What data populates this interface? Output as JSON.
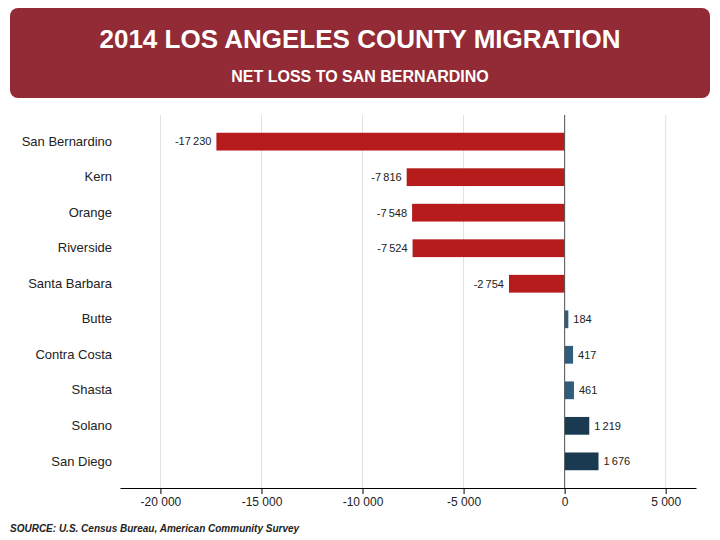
{
  "chart_data": {
    "type": "bar",
    "orientation": "horizontal",
    "title": "2014 LOS ANGELES COUNTY MIGRATION",
    "subtitle": "NET LOSS TO SAN BERNARDINO",
    "categories": [
      "San Bernardino",
      "Kern",
      "Orange",
      "Riverside",
      "Santa Barbara",
      "Butte",
      "Contra Costa",
      "Shasta",
      "Solano",
      "San Diego"
    ],
    "values": [
      -17230,
      -7816,
      -7548,
      -7524,
      -2754,
      184,
      417,
      461,
      1219,
      1676
    ],
    "value_labels": [
      "-17 230",
      "-7 816",
      "-7 548",
      "-7 524",
      "-2 754",
      "184",
      "417",
      "461",
      "1 219",
      "1 676"
    ],
    "data_labels": true,
    "colors": [
      "#b71c1c",
      "#b71c1c",
      "#b71c1c",
      "#b71c1c",
      "#b71c1c",
      "#2e5d7e",
      "#2e5d7e",
      "#2e5d7e",
      "#1a3a52",
      "#1a3a52"
    ],
    "xlim": [
      -22000,
      6500
    ],
    "xticks": [
      {
        "value": -20000,
        "label": "-20 000"
      },
      {
        "value": -15000,
        "label": "-15 000"
      },
      {
        "value": -10000,
        "label": "-10 000"
      },
      {
        "value": -5000,
        "label": "-5 000"
      },
      0,
      {
        "value": 5000,
        "label": "5 000"
      }
    ],
    "grid": true,
    "annotations": [
      "SOURCE: U.S. Census Bureau, American Community Survey"
    ]
  }
}
